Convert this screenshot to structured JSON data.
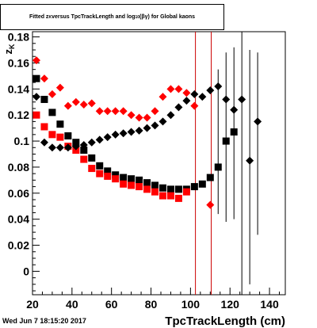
{
  "title": {
    "part1": "Fitted  z",
    "sub1": "K",
    "part2": "  versus  TpcTrackLength and  log",
    "sub2": "10",
    "part3": " (βγ)  for Global kaons"
  },
  "timestamp": "Wed Jun  7 18:15:20 2017",
  "chart_data": {
    "type": "scatter",
    "title": "Fitted z_K versus TpcTrackLength and log10(βγ) for Global kaons",
    "xlabel": "TpcTrackLength (cm)",
    "ylabel": "z_K",
    "xlim": [
      20,
      148
    ],
    "ylim": [
      -0.018,
      0.184
    ],
    "xticks": [
      "20",
      "40",
      "60",
      "80",
      "100",
      "120",
      "140"
    ],
    "yticks": [
      "0",
      "0.02",
      "0.04",
      "0.06",
      "0.08",
      "0.1",
      "0.12",
      "0.14",
      "0.16",
      "0.18"
    ],
    "vlines": [
      102.5,
      110.5
    ],
    "vline_color": "#cc0000",
    "series": [
      {
        "marker": "square",
        "color": "#000000",
        "points": [
          {
            "x": 22,
            "y": 0.148
          },
          {
            "x": 26,
            "y": 0.132
          },
          {
            "x": 30,
            "y": 0.122
          },
          {
            "x": 34,
            "y": 0.113
          },
          {
            "x": 38,
            "y": 0.104
          },
          {
            "x": 42,
            "y": 0.099
          },
          {
            "x": 46,
            "y": 0.093
          },
          {
            "x": 50,
            "y": 0.087
          },
          {
            "x": 54,
            "y": 0.081
          },
          {
            "x": 58,
            "y": 0.077
          },
          {
            "x": 62,
            "y": 0.074
          },
          {
            "x": 66,
            "y": 0.072
          },
          {
            "x": 70,
            "y": 0.071
          },
          {
            "x": 74,
            "y": 0.07
          },
          {
            "x": 78,
            "y": 0.068
          },
          {
            "x": 82,
            "y": 0.066
          },
          {
            "x": 86,
            "y": 0.064
          },
          {
            "x": 90,
            "y": 0.063
          },
          {
            "x": 94,
            "y": 0.063
          },
          {
            "x": 98,
            "y": 0.063
          },
          {
            "x": 102,
            "y": 0.065
          },
          {
            "x": 106,
            "y": 0.067
          },
          {
            "x": 110,
            "y": 0.072
          },
          {
            "x": 114,
            "y": 0.08
          },
          {
            "x": 118,
            "y": 0.1
          },
          {
            "x": 122,
            "y": 0.107
          }
        ]
      },
      {
        "marker": "square",
        "color": "#ff0000",
        "points": [
          {
            "x": 22,
            "y": 0.12
          },
          {
            "x": 26,
            "y": 0.111
          },
          {
            "x": 30,
            "y": 0.105
          },
          {
            "x": 34,
            "y": 0.103
          },
          {
            "x": 38,
            "y": 0.096
          },
          {
            "x": 42,
            "y": 0.093
          },
          {
            "x": 46,
            "y": 0.086
          },
          {
            "x": 50,
            "y": 0.079
          },
          {
            "x": 54,
            "y": 0.075
          },
          {
            "x": 58,
            "y": 0.073
          },
          {
            "x": 62,
            "y": 0.071
          },
          {
            "x": 66,
            "y": 0.067
          },
          {
            "x": 70,
            "y": 0.066
          },
          {
            "x": 74,
            "y": 0.065
          },
          {
            "x": 78,
            "y": 0.063
          },
          {
            "x": 82,
            "y": 0.061
          },
          {
            "x": 86,
            "y": 0.058
          },
          {
            "x": 90,
            "y": 0.058
          },
          {
            "x": 94,
            "y": 0.056
          },
          {
            "x": 98,
            "y": 0.061
          }
        ]
      },
      {
        "marker": "diamond",
        "color": "#000000",
        "points": [
          {
            "x": 22,
            "y": 0.134
          },
          {
            "x": 26,
            "y": 0.099
          },
          {
            "x": 30,
            "y": 0.095
          },
          {
            "x": 34,
            "y": 0.095
          },
          {
            "x": 38,
            "y": 0.095
          },
          {
            "x": 42,
            "y": 0.096
          },
          {
            "x": 46,
            "y": 0.097
          },
          {
            "x": 50,
            "y": 0.099
          },
          {
            "x": 54,
            "y": 0.101
          },
          {
            "x": 58,
            "y": 0.103
          },
          {
            "x": 62,
            "y": 0.105
          },
          {
            "x": 66,
            "y": 0.106
          },
          {
            "x": 70,
            "y": 0.107
          },
          {
            "x": 74,
            "y": 0.108
          },
          {
            "x": 78,
            "y": 0.11
          },
          {
            "x": 82,
            "y": 0.112
          },
          {
            "x": 86,
            "y": 0.115
          },
          {
            "x": 90,
            "y": 0.12
          },
          {
            "x": 94,
            "y": 0.126
          },
          {
            "x": 98,
            "y": 0.131
          },
          {
            "x": 102,
            "y": 0.136
          },
          {
            "x": 106,
            "y": 0.134
          },
          {
            "x": 110,
            "y": 0.139
          },
          {
            "x": 114,
            "y": 0.142
          },
          {
            "x": 118,
            "y": 0.132
          },
          {
            "x": 122,
            "y": 0.124
          },
          {
            "x": 126,
            "y": 0.132
          },
          {
            "x": 130,
            "y": 0.085
          },
          {
            "x": 134,
            "y": 0.115
          }
        ]
      },
      {
        "marker": "diamond",
        "color": "#ff0000",
        "points": [
          {
            "x": 22,
            "y": 0.162
          },
          {
            "x": 26,
            "y": 0.148
          },
          {
            "x": 30,
            "y": 0.136
          },
          {
            "x": 34,
            "y": 0.141
          },
          {
            "x": 38,
            "y": 0.127
          },
          {
            "x": 42,
            "y": 0.13
          },
          {
            "x": 46,
            "y": 0.128
          },
          {
            "x": 50,
            "y": 0.129
          },
          {
            "x": 54,
            "y": 0.123
          },
          {
            "x": 58,
            "y": 0.123
          },
          {
            "x": 62,
            "y": 0.123
          },
          {
            "x": 66,
            "y": 0.123
          },
          {
            "x": 70,
            "y": 0.12
          },
          {
            "x": 74,
            "y": 0.118
          },
          {
            "x": 78,
            "y": 0.118
          },
          {
            "x": 82,
            "y": 0.123
          },
          {
            "x": 86,
            "y": 0.134
          },
          {
            "x": 90,
            "y": 0.14
          },
          {
            "x": 94,
            "y": 0.14
          },
          {
            "x": 98,
            "y": 0.137
          },
          {
            "x": 102,
            "y": 0.127
          },
          {
            "x": 110,
            "y": 0.051
          }
        ]
      }
    ],
    "error_bars": [
      {
        "x": 114,
        "ylow": 0.044,
        "yhigh": 0.155
      },
      {
        "x": 118,
        "ylow": 0.038,
        "yhigh": 0.168
      },
      {
        "x": 122,
        "ylow": 0.04,
        "yhigh": 0.172
      },
      {
        "x": 126,
        "ylow": -0.02,
        "yhigh": 0.184
      },
      {
        "x": 130,
        "ylow": -0.01,
        "yhigh": 0.17
      },
      {
        "x": 134,
        "ylow": 0.028,
        "yhigh": 0.168
      }
    ]
  }
}
